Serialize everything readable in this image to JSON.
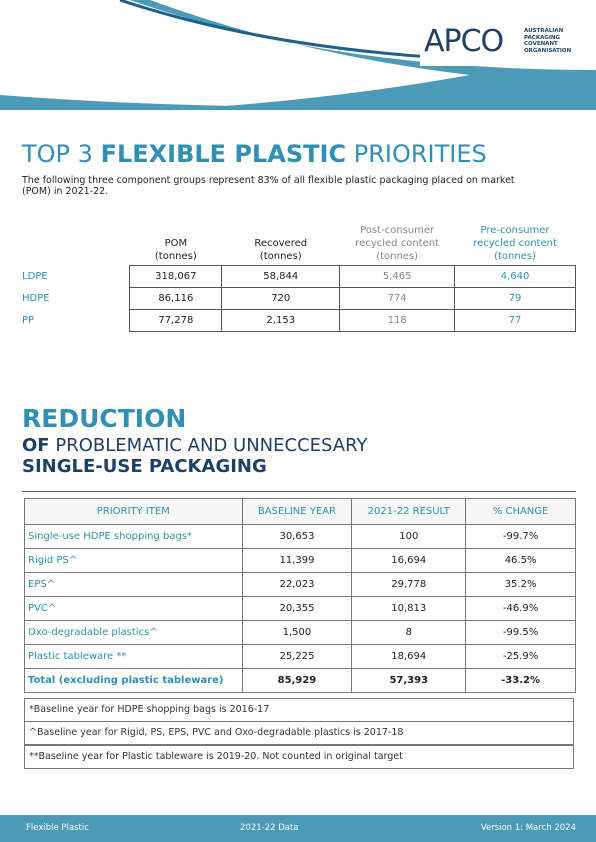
{
  "logo": {
    "name": "APCO",
    "lines": [
      "AUSTRALIAN",
      "PACKAGING",
      "COVENANT",
      "ORGANISATION"
    ]
  },
  "priorities": {
    "title": [
      "TOP 3",
      "FLEXIBLE PLASTIC",
      "PRIORITIES"
    ],
    "intro": "The following three component groups represent 83% of all flexible plastic packaging placed on market (POM) in 2021-22.",
    "columns": [
      "POM\n(tonnes)",
      "Recovered\n(tonnes)",
      "Post-consumer\nrecycled content\n(tonnes)",
      "Pre-consumer\nrecycled content\n(tonnes)"
    ],
    "rows": [
      [
        "LDPE",
        "318,067",
        "58,844",
        "5,465",
        "4,640"
      ],
      [
        "HDPE",
        "86,116",
        "720",
        "774",
        "79"
      ],
      [
        "PP",
        "77,278",
        "2,153",
        "118",
        "77"
      ]
    ]
  },
  "reduction": {
    "title": "REDUCTION",
    "subtitle": [
      "OF",
      "PROBLEMATIC AND UNNECCESARY"
    ],
    "subtitle2": "SINGLE-USE PACKAGING",
    "columns": [
      "PRIORITY ITEM",
      "BASELINE YEAR",
      "2021-22 RESULT",
      "% CHANGE"
    ],
    "rows": [
      [
        "Single-use HDPE shopping bags*",
        "30,653",
        "100",
        "-99.7%"
      ],
      [
        "Rigid PS^",
        "11,399",
        "16,694",
        "46.5%"
      ],
      [
        "EPS^",
        "22,023",
        "29,778",
        "35.2%"
      ],
      [
        "PVC^",
        "20,355",
        "10,813",
        "-46.9%"
      ],
      [
        "Oxo-degradable plastics^",
        "1,500",
        "8",
        "-99.5%"
      ],
      [
        "Plastic tableware **",
        "25,225",
        "18,694",
        "-25.9%"
      ],
      [
        "Total (excluding plastic tableware)",
        "85,929",
        "57,393",
        "-33.2%"
      ]
    ],
    "footnotes": [
      "*Baseline year for HDPE shopping bags is 2016-17",
      "^Baseline year for Rigid, PS, EPS, PVC and Oxo-degradable plastics is 2017-18",
      "**Baseline year for Plastic tableware is 2019-20. Not counted in original target"
    ]
  },
  "footer": [
    "Flexible Plastic",
    "2021-22 Data",
    "Version 1: March 2024"
  ]
}
